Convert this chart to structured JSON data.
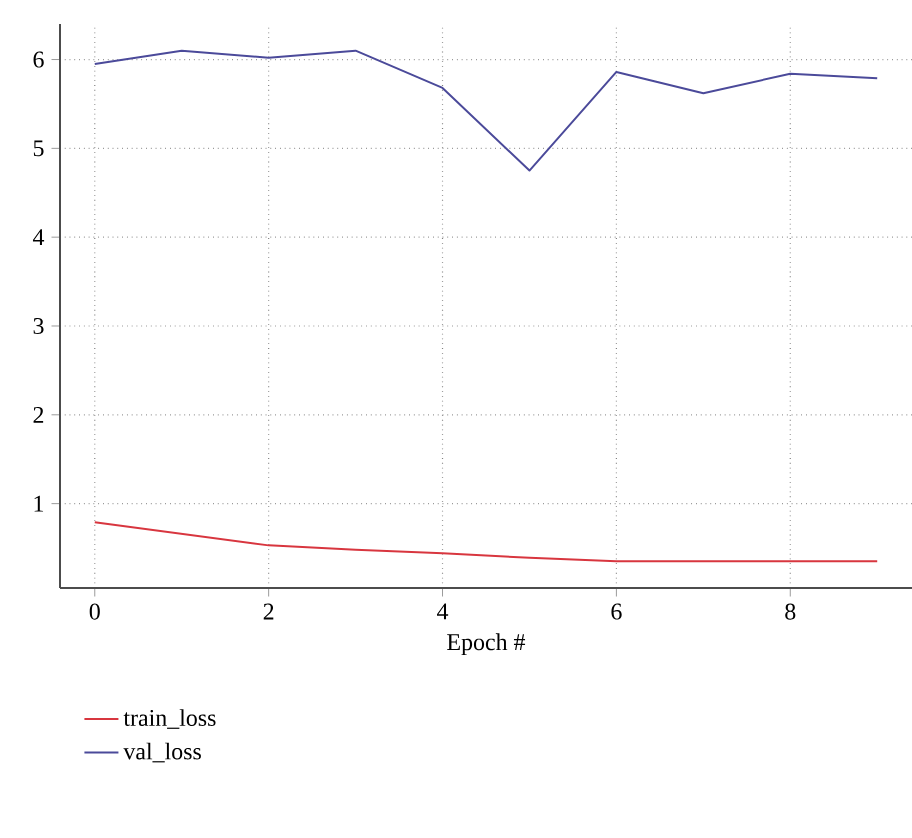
{
  "chart_data": {
    "type": "line",
    "xlabel": "Epoch #",
    "x": [
      0,
      1,
      2,
      3,
      4,
      5,
      6,
      7,
      8,
      9
    ],
    "series": [
      {
        "name": "train_loss",
        "color": "#d8363f",
        "values": [
          0.79,
          0.66,
          0.53,
          0.48,
          0.44,
          0.39,
          0.35,
          0.35,
          0.35,
          0.35
        ]
      },
      {
        "name": "val_loss",
        "color": "#4b4a9a",
        "values": [
          5.95,
          6.1,
          6.02,
          6.1,
          5.68,
          4.75,
          5.86,
          5.62,
          5.84,
          5.79
        ]
      }
    ],
    "xlim": [
      -0.4,
      9.4
    ],
    "ylim": [
      0.05,
      6.4
    ],
    "xticks": [
      0,
      2,
      4,
      6,
      8
    ],
    "yticks": [
      1,
      2,
      3,
      4,
      5,
      6
    ],
    "grid": true,
    "legend": "bottom",
    "line_style": "solid",
    "marker": "none"
  }
}
